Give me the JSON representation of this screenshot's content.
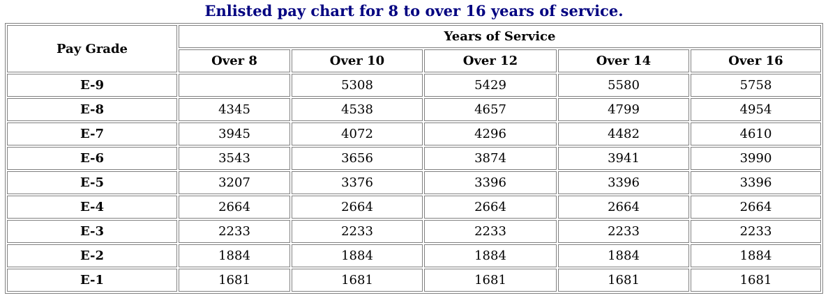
{
  "title": {
    "text": "Enlisted pay chart for 8 to over 16 years of service.",
    "color": "#000080"
  },
  "table": {
    "border_color": "#808080",
    "corner_header": "Pay Grade",
    "group_header": "Years of Service",
    "column_headers": [
      "Over 8",
      "Over 10",
      "Over 12",
      "Over 14",
      "Over 16"
    ],
    "rows": [
      {
        "grade": "E-9",
        "values": [
          "",
          "5308",
          "5429",
          "5580",
          "5758"
        ]
      },
      {
        "grade": "E-8",
        "values": [
          "4345",
          "4538",
          "4657",
          "4799",
          "4954"
        ]
      },
      {
        "grade": "E-7",
        "values": [
          "3945",
          "4072",
          "4296",
          "4482",
          "4610"
        ]
      },
      {
        "grade": "E-6",
        "values": [
          "3543",
          "3656",
          "3874",
          "3941",
          "3990"
        ]
      },
      {
        "grade": "E-5",
        "values": [
          "3207",
          "3376",
          "3396",
          "3396",
          "3396"
        ]
      },
      {
        "grade": "E-4",
        "values": [
          "2664",
          "2664",
          "2664",
          "2664",
          "2664"
        ]
      },
      {
        "grade": "E-3",
        "values": [
          "2233",
          "2233",
          "2233",
          "2233",
          "2233"
        ]
      },
      {
        "grade": "E-2",
        "values": [
          "1884",
          "1884",
          "1884",
          "1884",
          "1884"
        ]
      },
      {
        "grade": "E-1",
        "values": [
          "1681",
          "1681",
          "1681",
          "1681",
          "1681"
        ]
      }
    ]
  }
}
